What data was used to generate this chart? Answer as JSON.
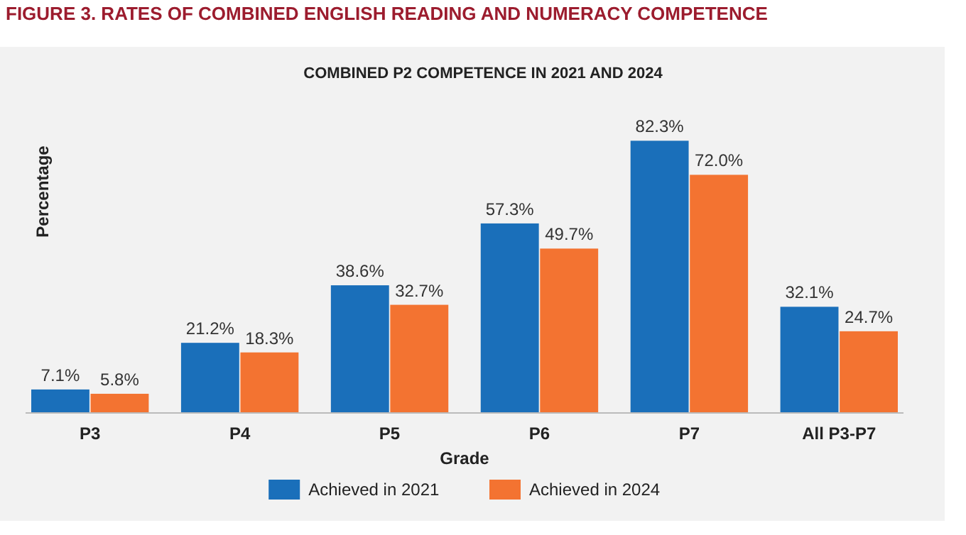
{
  "chart_data": {
    "type": "bar",
    "title": "FIGURE 3. RATES OF COMBINED ENGLISH READING AND NUMERACY COMPETENCE",
    "subtitle": "COMBINED P2 COMPETENCE IN 2021 AND 2024",
    "xlabel": "Grade",
    "ylabel": "Percentage",
    "categories": [
      "P3",
      "P4",
      "P5",
      "P6",
      "P7",
      "All P3-P7"
    ],
    "series": [
      {
        "name": "Achieved in 2021",
        "color": "#1a6fba",
        "values": [
          7.1,
          21.2,
          38.6,
          57.3,
          82.3,
          32.1
        ],
        "value_labels": [
          "7.1%",
          "21.2%",
          "38.6%",
          "57.3%",
          "82.3%",
          "32.1%"
        ]
      },
      {
        "name": "Achieved in 2024",
        "color": "#f37331",
        "values": [
          5.8,
          18.3,
          32.7,
          49.7,
          72.0,
          24.7
        ],
        "value_labels": [
          "5.8%",
          "18.3%",
          "32.7%",
          "49.7%",
          "72.0%",
          "24.7%"
        ]
      }
    ],
    "legend": "bottom",
    "grid": false
  }
}
